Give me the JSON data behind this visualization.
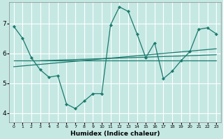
{
  "xlabel": "Humidex (Indice chaleur)",
  "bg_color": "#c5e8e3",
  "grid_color": "#ffffff",
  "line_color": "#1a7a6e",
  "xlim": [
    -0.5,
    23.5
  ],
  "ylim": [
    3.7,
    7.7
  ],
  "yticks": [
    4,
    5,
    6,
    7
  ],
  "xtick_labels": [
    "0",
    "1",
    "2",
    "3",
    "4",
    "5",
    "6",
    "7",
    "8",
    "9",
    "10",
    "11",
    "12",
    "13",
    "14",
    "15",
    "16",
    "17",
    "18",
    "19",
    "20",
    "21",
    "22",
    "23"
  ],
  "line1_x": [
    0,
    1,
    2,
    3,
    4,
    5,
    6,
    7,
    8,
    9,
    10,
    11,
    12,
    13,
    14,
    15,
    16,
    17,
    18,
    19,
    20,
    21,
    22,
    23
  ],
  "line1_y": [
    6.9,
    6.5,
    5.85,
    5.45,
    5.2,
    5.25,
    4.3,
    4.15,
    4.4,
    4.65,
    4.65,
    6.95,
    7.55,
    7.4,
    6.65,
    5.85,
    6.35,
    5.15,
    5.4,
    5.75,
    6.05,
    6.8,
    6.85,
    6.65
  ],
  "flat_line_x": [
    0,
    23
  ],
  "flat_line_y": [
    5.75,
    5.75
  ],
  "diag_line1_x": [
    0,
    23
  ],
  "diag_line1_y": [
    5.55,
    6.15
  ],
  "diag_line2_x": [
    3,
    23
  ],
  "diag_line2_y": [
    5.75,
    5.95
  ]
}
